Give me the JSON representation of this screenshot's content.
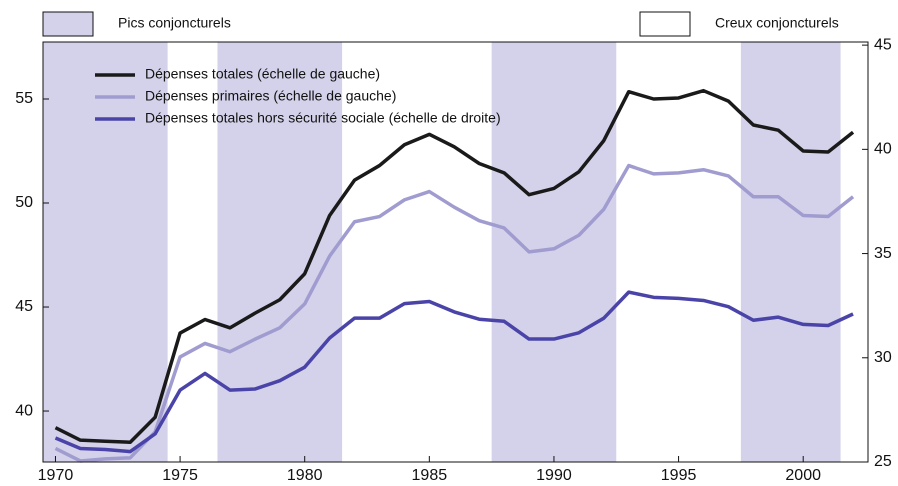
{
  "chart_data": {
    "type": "line",
    "shaded_label": "Pics conjoncturels",
    "unshaded_label": "Creux conjoncturels",
    "shaded_color": "#d4d2ea",
    "shaded_periods": [
      [
        1969.5,
        1974.5
      ],
      [
        1976.5,
        1981.5
      ],
      [
        1987.5,
        1992.5
      ],
      [
        1997.5,
        2001.5
      ]
    ],
    "x": [
      1970,
      1971,
      1972,
      1973,
      1974,
      1975,
      1976,
      1977,
      1978,
      1979,
      1980,
      1981,
      1982,
      1983,
      1984,
      1985,
      1986,
      1987,
      1988,
      1989,
      1990,
      1991,
      1992,
      1993,
      1994,
      1995,
      1996,
      1997,
      1998,
      1999,
      2000,
      2001,
      2002
    ],
    "series": [
      {
        "name": "Dépenses totales (échelle de gauche)",
        "color": "#1a1a1a",
        "values": [
          39.2,
          38.6,
          38.55,
          38.5,
          39.7,
          43.75,
          44.4,
          44.0,
          44.7,
          45.35,
          46.6,
          49.4,
          51.1,
          51.8,
          52.8,
          53.3,
          52.7,
          51.9,
          51.45,
          50.4,
          50.7,
          51.5,
          53.0,
          55.35,
          55.0,
          55.05,
          55.4,
          54.9,
          53.75,
          53.5,
          52.5,
          52.45,
          53.4
        ]
      },
      {
        "name": "Dépenses primaires (échelle de gauche)",
        "color": "#a09cd0",
        "values": [
          38.2,
          37.6,
          37.7,
          37.75,
          39.0,
          42.6,
          43.25,
          42.85,
          43.45,
          44.0,
          45.15,
          47.45,
          49.1,
          49.35,
          50.15,
          50.55,
          49.8,
          49.15,
          48.8,
          47.65,
          47.8,
          48.45,
          49.7,
          51.8,
          51.4,
          51.45,
          51.6,
          51.3,
          50.3,
          50.3,
          49.4,
          49.35,
          50.3
        ]
      },
      {
        "name": "Dépenses totales hors sécurité sociale (échelle de droite)",
        "color": "#4a44a8",
        "axis": "y2",
        "values": [
          26.15,
          25.65,
          25.6,
          25.5,
          26.35,
          28.45,
          29.25,
          28.45,
          28.5,
          28.9,
          29.55,
          30.95,
          31.9,
          31.9,
          32.6,
          32.7,
          32.2,
          31.85,
          31.75,
          30.9,
          30.9,
          31.2,
          31.9,
          33.15,
          32.9,
          32.85,
          32.75,
          32.45,
          31.8,
          31.95,
          31.6,
          31.55,
          32.1
        ]
      }
    ],
    "xlim": [
      1969.5,
      2002.6
    ],
    "xticks": [
      1970,
      1975,
      1980,
      1985,
      1990,
      1995,
      2000
    ],
    "ylim": [
      37.55,
      57.74
    ],
    "yticks": [
      40,
      45,
      50,
      55
    ],
    "y2lim": [
      25,
      45.15
    ],
    "y2ticks": [
      25,
      30,
      35,
      40,
      45
    ]
  }
}
